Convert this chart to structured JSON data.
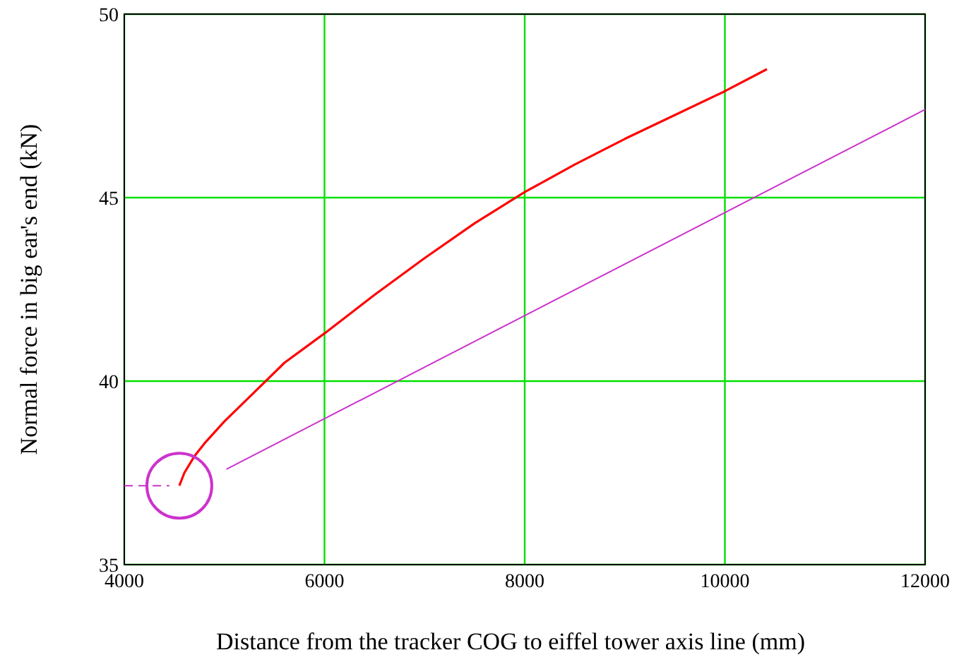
{
  "chart_data": {
    "type": "line",
    "xlabel": "Distance from the tracker COG to eiffel tower axis line (mm)",
    "ylabel": "Normal force in big ear's end (kN)",
    "xlim": [
      4000,
      12000
    ],
    "xticks": [
      4000,
      6000,
      8000,
      10000,
      12000
    ],
    "ylim": [
      35,
      50
    ],
    "yticks": [
      35,
      40,
      45,
      50
    ],
    "grid": true,
    "line_style": "solid",
    "marker": "none",
    "series": [
      {
        "color": "#ff0000",
        "x": [
          4550,
          4600,
          4700,
          4800,
          5000,
          5300,
          5600,
          6000,
          6500,
          7000,
          7500,
          8000,
          8500,
          9000,
          9500,
          10000,
          10420
        ],
        "values": [
          37.15,
          37.5,
          37.95,
          38.3,
          38.9,
          39.7,
          40.5,
          41.3,
          42.35,
          43.35,
          44.3,
          45.15,
          45.9,
          46.6,
          47.25,
          47.9,
          48.5
        ]
      },
      {
        "color": "#cc33cc",
        "x": [
          5020,
          12000
        ],
        "values": [
          37.6,
          47.4
        ]
      },
      {
        "color": "#cc33cc",
        "x": [
          4000,
          4450
        ],
        "values": [
          37.15,
          37.15
        ],
        "line_style": "dashed"
      }
    ]
  }
}
